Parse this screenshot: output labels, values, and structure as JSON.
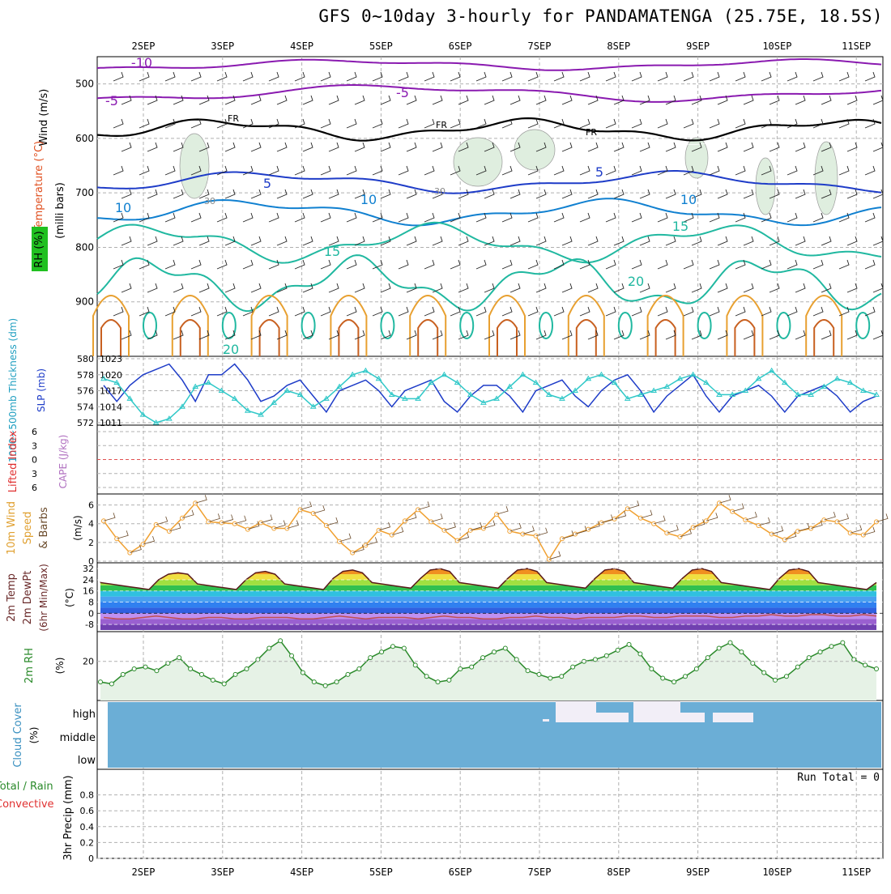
{
  "title": "GFS 0~10day 3-hourly for PANDAMATENGA (25.75E, 18.5S)",
  "date_labels": [
    "2SEP",
    "3SEP",
    "4SEP",
    "5SEP",
    "6SEP",
    "7SEP",
    "8SEP",
    "9SEP",
    "10SEP",
    "11SEP"
  ],
  "colors": {
    "temp_line": "#1e3cc8",
    "thick_line": "#30c8c8",
    "wind_line": "#f0a030",
    "rh_line": "#2a8a2a",
    "cloud": "#6baed6",
    "freezing": "#000000"
  },
  "panels": {
    "upper": {
      "label_wind": "Wind (m/s)",
      "label_temp": "Temperature (°C)",
      "label_rh": "RH (%)",
      "label_p": "(milli bars)"
    },
    "slp": {
      "label_thk": "1000~500mb Thickness (dm)",
      "label_slp": "SLP (mb)"
    },
    "cape": {
      "label_li": "Lifted Index",
      "label_cape": "CAPE (J/kg)"
    },
    "wind10": {
      "label1": "10m Wind",
      "label2": "Speed",
      "label3": "& Barbs",
      "unit": "(m/s)"
    },
    "temp2m": {
      "label1": "2m Temp",
      "label2": "2m DewPt",
      "label3": "(6hr Min/Max)",
      "unit": "(°C)"
    },
    "rh2m": {
      "label": "2m RH",
      "unit": "(%)"
    },
    "cloud": {
      "label1": "Cloud Cover",
      "unit": "(%)",
      "levels": [
        "high",
        "middle",
        "low"
      ]
    },
    "precip": {
      "label1": "Total / Rain",
      "label2": "Convective",
      "label3": "3hr Precip (mm)",
      "run_total": "Run Total = 0"
    }
  },
  "chart_data": [
    {
      "type": "line",
      "panel": "upper-air cross-section",
      "yticks": [
        500,
        600,
        700,
        800,
        900
      ],
      "ylim": [
        1000,
        450
      ],
      "contour_labels": [
        "-10",
        "-5",
        "-5",
        "FR",
        "FR",
        "FR",
        "5",
        "5",
        "10",
        "10",
        "10",
        "15",
        "15",
        "20",
        "20",
        "30",
        "30"
      ]
    },
    {
      "type": "line",
      "panel": "slp-thickness",
      "yticks_left": [
        572,
        574,
        576,
        578,
        580
      ],
      "yticks_right": [
        1011,
        1014,
        1017,
        1020,
        1023
      ],
      "series": [
        {
          "name": "SLP (mb)",
          "axis": "right",
          "values": [
            1018,
            1015,
            1018,
            1020,
            1021,
            1022,
            1019,
            1015,
            1020,
            1020,
            1022,
            1019,
            1015,
            1016,
            1018,
            1019,
            1016,
            1013,
            1017,
            1018,
            1019,
            1017,
            1014,
            1017,
            1018,
            1019,
            1015,
            1013,
            1016,
            1018,
            1018,
            1016,
            1013,
            1017,
            1018,
            1019,
            1016,
            1014,
            1017,
            1019,
            1020,
            1017,
            1013,
            1016,
            1018,
            1020,
            1016,
            1013,
            1016,
            1017,
            1018,
            1016,
            1013,
            1016,
            1017,
            1018,
            1016,
            1013,
            1015,
            1016
          ]
        },
        {
          "name": "Thickness (dm)",
          "axis": "left",
          "values": [
            577.5,
            577,
            575,
            573,
            572,
            572.5,
            574,
            576.5,
            577,
            576,
            575,
            573.5,
            573,
            574.5,
            576,
            575.5,
            574,
            575,
            576.5,
            578,
            578.5,
            577.5,
            575.5,
            575,
            575,
            577,
            578,
            577,
            575.5,
            574.5,
            575,
            576.5,
            578,
            577,
            575.5,
            575,
            576,
            577.5,
            578,
            577,
            575,
            575.5,
            576,
            576.5,
            577.5,
            578,
            577,
            575.5,
            575.5,
            576,
            577.5,
            578.5,
            577,
            575.5,
            575.5,
            576.5,
            577.5,
            577,
            576,
            575.5
          ]
        }
      ]
    },
    {
      "type": "line",
      "panel": "cape-li",
      "yticks": [
        -6,
        -3,
        0,
        3,
        6
      ],
      "values": []
    },
    {
      "type": "line",
      "panel": "10m-wind",
      "yticks": [
        0,
        2,
        4,
        6
      ],
      "ylim": [
        0,
        7
      ],
      "values": [
        4.3,
        2.4,
        0.9,
        1.8,
        3.9,
        3.2,
        4.6,
        6.2,
        4.2,
        4.1,
        4.0,
        3.4,
        4.1,
        3.5,
        3.5,
        5.5,
        5.1,
        3.8,
        2.1,
        0.9,
        1.7,
        3.3,
        2.8,
        4.3,
        5.5,
        4.2,
        3.3,
        2.2,
        3.3,
        3.5,
        5.0,
        3.2,
        2.9,
        2.7,
        0.2,
        2.4,
        2.9,
        3.4,
        4.1,
        4.5,
        5.6,
        4.6,
        4.0,
        3.0,
        2.6,
        3.6,
        4.3,
        6.2,
        5.3,
        4.4,
        3.8,
        2.9,
        2.3,
        3.2,
        3.5,
        4.4,
        4.2,
        3.0,
        2.8,
        4.2
      ]
    },
    {
      "type": "area",
      "panel": "2m-temp",
      "yticks": [
        -8,
        0,
        8,
        16,
        24,
        32
      ],
      "ylim": [
        -12,
        35
      ],
      "series": [
        {
          "name": "2m Temp",
          "values": [
            22,
            21,
            20,
            19,
            18,
            17,
            24,
            28,
            29,
            28,
            21,
            20,
            19,
            18,
            17,
            24,
            29,
            30,
            28,
            21,
            20,
            19,
            18,
            17,
            25,
            30,
            31,
            29,
            22,
            21,
            20,
            19,
            18,
            25,
            31,
            32,
            30,
            22,
            21,
            20,
            19,
            18,
            25,
            31,
            32,
            30,
            22,
            21,
            20,
            19,
            18,
            25,
            31,
            32,
            30,
            22,
            21,
            20,
            19,
            18,
            25,
            31,
            32,
            30,
            22,
            21,
            20,
            19,
            18,
            17,
            25,
            31,
            32,
            30,
            22,
            21,
            20,
            19,
            18,
            17,
            22
          ]
        },
        {
          "name": "2m DewPt",
          "values": [
            -3,
            -4,
            -4,
            -3,
            -2,
            -3,
            -4,
            -4,
            -3,
            -3,
            -4,
            -4,
            -3,
            -3,
            -3,
            -4,
            -4,
            -3,
            -2,
            -3,
            -4,
            -3,
            -3,
            -3,
            -4,
            -3,
            -2,
            -3,
            -3,
            -4,
            -4,
            -3,
            -3,
            -2,
            -3,
            -3,
            -4,
            -3,
            -3,
            -3,
            -2,
            -2,
            -3,
            -3,
            -2,
            -2,
            -2,
            -3,
            -3,
            -2,
            -2,
            -1,
            -2,
            -2,
            -1,
            -1,
            -2,
            -2,
            -1,
            -2
          ]
        }
      ]
    },
    {
      "type": "area",
      "panel": "2m-rh",
      "yticks": [
        20
      ],
      "ylim": [
        0,
        35
      ],
      "values": [
        9,
        8,
        13,
        16,
        17,
        15,
        19,
        22,
        16,
        13,
        10,
        8,
        13,
        16,
        21,
        27,
        31,
        23,
        14,
        9,
        7,
        9,
        13,
        16,
        22,
        25,
        28,
        27,
        18,
        12,
        9,
        10,
        16,
        17,
        22,
        25,
        27,
        21,
        15,
        13,
        11,
        12,
        17,
        20,
        21,
        23,
        26,
        29,
        24,
        16,
        11,
        9,
        12,
        16,
        22,
        27,
        30,
        25,
        19,
        14,
        10,
        12,
        17,
        22,
        25,
        28,
        30,
        21,
        18,
        16
      ]
    },
    {
      "type": "area",
      "panel": "cloud-cover",
      "yticks": [
        "high",
        "middle",
        "low"
      ],
      "note": "high-level cloud gaps near 7SEP-9SEP"
    },
    {
      "type": "bar",
      "panel": "3hr-precip",
      "yticks": [
        0,
        0.2,
        0.4,
        0.6,
        0.8
      ],
      "ylim": [
        0,
        1
      ],
      "values": []
    }
  ]
}
